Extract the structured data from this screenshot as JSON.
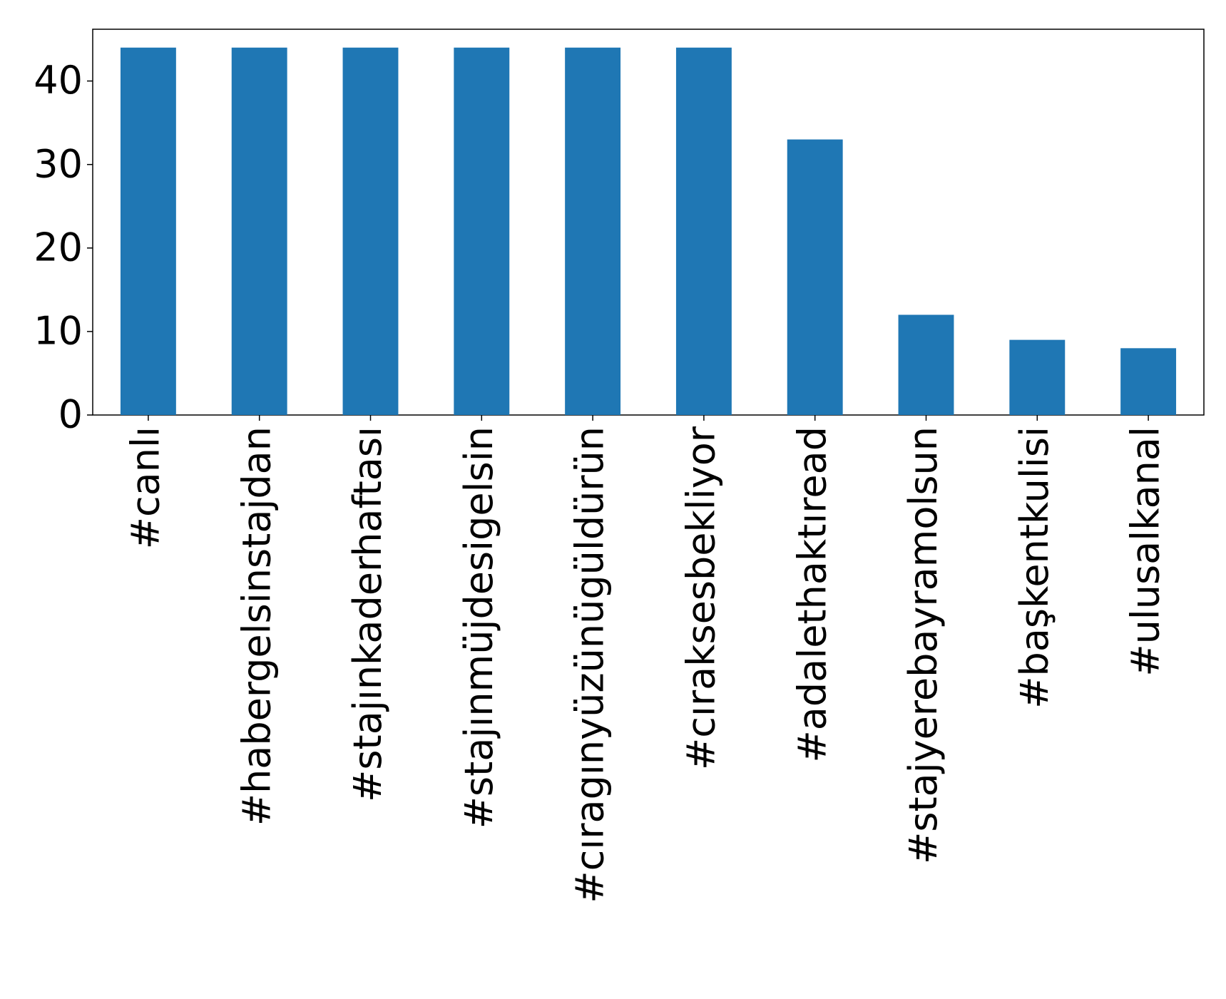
{
  "chart_data": {
    "type": "bar",
    "categories": [
      "#canlı",
      "#habergelsinstajdan",
      "#stajınkaderhaftası",
      "#stajınmüjdesigelsin",
      "#cıragınyüzünügüldürün",
      "#cıraksesbekliyor",
      "#adalethaktıread",
      "#stajyerebayramolsun",
      "#başkentkulisi",
      "#ulusalkanal"
    ],
    "values": [
      44,
      44,
      44,
      44,
      44,
      44,
      33,
      12,
      9,
      8
    ],
    "color": "#1f77b4",
    "ylim": [
      0,
      46.2
    ],
    "yticks": [
      0,
      10,
      20,
      30,
      40
    ],
    "grid": false
  }
}
